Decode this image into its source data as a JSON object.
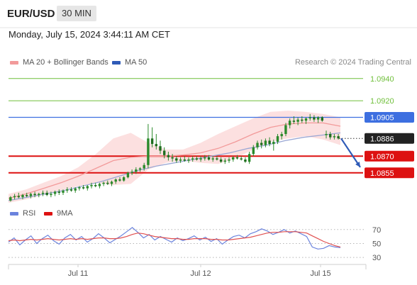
{
  "header": {
    "pair": "EUR/USD",
    "timeframe": "30 MIN",
    "datetime": "Monday, July 15, 2024 3:44:11 AM CET"
  },
  "legend": {
    "ma20": "MA 20 + Bollinger Bands",
    "ma50": "MA 50",
    "credit": "Research © 2024 Trading Central"
  },
  "indicator_legend": {
    "rsi": "RSI",
    "ma9": "9MA"
  },
  "colors": {
    "candle": "#2b8a2b",
    "ma20": "#f29a9a",
    "band_fill": "#fbdada",
    "ma50": "#9aa7d4",
    "support": "#dd1111",
    "resistance": "#6fbf3a",
    "pivot": "#3d6fe0",
    "current_label": "#222222",
    "rsi": "#6b83dd",
    "rsi_ma": "#e05050"
  },
  "chart_data": [
    {
      "type": "candlestick",
      "title": "EUR/USD",
      "x_ticks": [
        "Jul 11",
        "Jul 12",
        "Jul 15"
      ],
      "ylim": [
        1.0828,
        1.0952
      ],
      "candles_ohlc": [
        [
          1.083,
          1.0834,
          1.0829,
          1.0833
        ],
        [
          1.0833,
          1.0836,
          1.0831,
          1.0834
        ],
        [
          1.0834,
          1.0837,
          1.0832,
          1.0833
        ],
        [
          1.0833,
          1.0836,
          1.0831,
          1.0835
        ],
        [
          1.0835,
          1.0837,
          1.0833,
          1.0834
        ],
        [
          1.0834,
          1.0837,
          1.0832,
          1.0836
        ],
        [
          1.0836,
          1.0838,
          1.0833,
          1.0835
        ],
        [
          1.0835,
          1.0837,
          1.0833,
          1.0836
        ],
        [
          1.0836,
          1.0839,
          1.0834,
          1.0837
        ],
        [
          1.0837,
          1.0839,
          1.0834,
          1.0835
        ],
        [
          1.0835,
          1.0838,
          1.0833,
          1.0836
        ],
        [
          1.0836,
          1.0839,
          1.0834,
          1.0838
        ],
        [
          1.0838,
          1.084,
          1.0835,
          1.0837
        ],
        [
          1.0837,
          1.084,
          1.0835,
          1.0839
        ],
        [
          1.0839,
          1.0842,
          1.0837,
          1.084
        ],
        [
          1.084,
          1.0842,
          1.0838,
          1.0839
        ],
        [
          1.0839,
          1.0842,
          1.0837,
          1.0841
        ],
        [
          1.0841,
          1.0843,
          1.0839,
          1.0842
        ],
        [
          1.0842,
          1.0844,
          1.084,
          1.0841
        ],
        [
          1.0841,
          1.0844,
          1.0839,
          1.0843
        ],
        [
          1.0843,
          1.0846,
          1.0841,
          1.0844
        ],
        [
          1.0844,
          1.0846,
          1.0842,
          1.0843
        ],
        [
          1.0843,
          1.0846,
          1.0841,
          1.0845
        ],
        [
          1.0845,
          1.0847,
          1.0843,
          1.0846
        ],
        [
          1.0846,
          1.0848,
          1.0844,
          1.0845
        ],
        [
          1.0845,
          1.0848,
          1.0843,
          1.0847
        ],
        [
          1.0847,
          1.085,
          1.0845,
          1.0849
        ],
        [
          1.0849,
          1.0851,
          1.0847,
          1.0848
        ],
        [
          1.0848,
          1.0852,
          1.0847,
          1.0851
        ],
        [
          1.0851,
          1.0856,
          1.085,
          1.0855
        ],
        [
          1.0855,
          1.0858,
          1.0853,
          1.0856
        ],
        [
          1.0856,
          1.086,
          1.0854,
          1.0858
        ],
        [
          1.0858,
          1.086,
          1.0856,
          1.0859
        ],
        [
          1.0859,
          1.0864,
          1.0857,
          1.0862
        ],
        [
          1.0862,
          1.0899,
          1.0859,
          1.0886
        ],
        [
          1.0886,
          1.0896,
          1.0878,
          1.0881
        ],
        [
          1.0881,
          1.089,
          1.0876,
          1.0879
        ],
        [
          1.0879,
          1.0884,
          1.0872,
          1.0875
        ],
        [
          1.0875,
          1.0878,
          1.0868,
          1.0871
        ],
        [
          1.0871,
          1.0874,
          1.0866,
          1.0869
        ],
        [
          1.0869,
          1.0872,
          1.0865,
          1.0868
        ],
        [
          1.0868,
          1.087,
          1.0864,
          1.0866
        ],
        [
          1.0866,
          1.0869,
          1.0864,
          1.0867
        ],
        [
          1.0867,
          1.087,
          1.0865,
          1.0866
        ],
        [
          1.0866,
          1.0869,
          1.0864,
          1.0867
        ],
        [
          1.0867,
          1.087,
          1.0865,
          1.0868
        ],
        [
          1.0868,
          1.087,
          1.0866,
          1.0867
        ],
        [
          1.0867,
          1.087,
          1.0865,
          1.0868
        ],
        [
          1.0868,
          1.0871,
          1.0866,
          1.0869
        ],
        [
          1.0869,
          1.0871,
          1.0866,
          1.0867
        ],
        [
          1.0867,
          1.087,
          1.0865,
          1.0868
        ],
        [
          1.0868,
          1.087,
          1.0866,
          1.0867
        ],
        [
          1.0867,
          1.0869,
          1.0864,
          1.0865
        ],
        [
          1.0865,
          1.0868,
          1.0863,
          1.0866
        ],
        [
          1.0866,
          1.0869,
          1.0864,
          1.0867
        ],
        [
          1.0867,
          1.087,
          1.0865,
          1.0869
        ],
        [
          1.0869,
          1.0871,
          1.0867,
          1.0868
        ],
        [
          1.0868,
          1.087,
          1.0866,
          1.0867
        ],
        [
          1.0867,
          1.0869,
          1.0864,
          1.0865
        ],
        [
          1.0865,
          1.0874,
          1.0863,
          1.0872
        ],
        [
          1.0872,
          1.088,
          1.087,
          1.0878
        ],
        [
          1.0878,
          1.0884,
          1.0876,
          1.0882
        ],
        [
          1.0882,
          1.0885,
          1.0877,
          1.088
        ],
        [
          1.088,
          1.0886,
          1.0878,
          1.0884
        ],
        [
          1.0884,
          1.0887,
          1.0879,
          1.0881
        ],
        [
          1.0881,
          1.0885,
          1.0875,
          1.0883
        ],
        [
          1.0883,
          1.089,
          1.0881,
          1.0888
        ],
        [
          1.0888,
          1.0892,
          1.0885,
          1.089
        ],
        [
          1.089,
          1.09,
          1.0888,
          1.0898
        ],
        [
          1.0898,
          1.0904,
          1.0895,
          1.0902
        ],
        [
          1.0902,
          1.0906,
          1.0899,
          1.0901
        ],
        [
          1.0901,
          1.0905,
          1.0898,
          1.0903
        ],
        [
          1.0903,
          1.0906,
          1.09,
          1.0902
        ],
        [
          1.0902,
          1.0905,
          1.0899,
          1.0904
        ],
        [
          1.0904,
          1.0908,
          1.0902,
          1.0905
        ],
        [
          1.0905,
          1.0907,
          1.0901,
          1.0903
        ],
        [
          1.0903,
          1.0906,
          1.09,
          1.0905
        ],
        [
          1.0905,
          1.0906,
          1.0901,
          1.0902
        ],
        [
          1.0889,
          1.0893,
          1.0886,
          1.089
        ],
        [
          1.089,
          1.0892,
          1.0885,
          1.0887
        ],
        [
          1.0887,
          1.089,
          1.0885,
          1.0888
        ],
        [
          1.0888,
          1.089,
          1.0885,
          1.0886
        ]
      ],
      "ma20": [
        1.0832,
        1.0836,
        1.0841,
        1.0846,
        1.0852,
        1.0859,
        1.0866,
        1.0869,
        1.087,
        1.087,
        1.0871,
        1.0873,
        1.0877,
        1.0883,
        1.089,
        1.0896,
        1.0899,
        1.09,
        1.09,
        1.0897
      ],
      "bollinger_upper": [
        1.0836,
        1.084,
        1.0846,
        1.0852,
        1.086,
        1.0872,
        1.0886,
        1.0891,
        1.0882,
        1.0876,
        1.0876,
        1.0882,
        1.089,
        1.0897,
        1.0904,
        1.091,
        1.0911,
        1.091,
        1.0908,
        1.0905
      ],
      "bollinger_lower": [
        1.0828,
        1.0831,
        1.0835,
        1.0839,
        1.0843,
        1.0846,
        1.0844,
        1.0845,
        1.0858,
        1.0864,
        1.0866,
        1.0864,
        1.0863,
        1.0868,
        1.0876,
        1.0883,
        1.0886,
        1.0888,
        1.0885,
        1.088
      ],
      "ma50": [
        1.083,
        1.0833,
        1.0836,
        1.0839,
        1.0843,
        1.0847,
        1.0852,
        1.0857,
        1.0861,
        1.0864,
        1.0867,
        1.087,
        1.0873,
        1.0877,
        1.088,
        1.0884,
        1.0887,
        1.0889,
        1.0891
      ],
      "levels": [
        {
          "value": 1.094,
          "label": "1.0940",
          "kind": "resistance"
        },
        {
          "value": 1.092,
          "label": "1.0920",
          "kind": "resistance"
        },
        {
          "value": 1.0905,
          "label": "1.0905",
          "kind": "pivot"
        },
        {
          "value": 1.0886,
          "label": "1.0886",
          "kind": "current"
        },
        {
          "value": 1.087,
          "label": "1.0870",
          "kind": "support"
        },
        {
          "value": 1.0855,
          "label": "1.0855",
          "kind": "support"
        }
      ],
      "projection": {
        "from": 1.0886,
        "to": 1.086,
        "direction": "down"
      }
    },
    {
      "type": "line",
      "title": "RSI",
      "ylim": [
        25,
        80
      ],
      "y_ticks": [
        70,
        50,
        30
      ],
      "series": [
        {
          "name": "RSI",
          "values": [
            52,
            58,
            48,
            55,
            61,
            50,
            57,
            62,
            54,
            49,
            58,
            63,
            55,
            60,
            52,
            57,
            64,
            58,
            51,
            56,
            61,
            67,
            73,
            66,
            58,
            63,
            55,
            60,
            56,
            52,
            58,
            54,
            57,
            61,
            55,
            59,
            53,
            57,
            49,
            55,
            60,
            62,
            58,
            64,
            67,
            71,
            68,
            63,
            66,
            70,
            65,
            68,
            64,
            60,
            45,
            42,
            43,
            47,
            45,
            44
          ]
        },
        {
          "name": "9MA",
          "values": [
            54,
            55,
            54,
            55,
            56,
            55,
            56,
            57,
            56,
            55,
            56,
            57,
            56,
            57,
            56,
            57,
            58,
            58,
            57,
            57,
            58,
            60,
            63,
            65,
            64,
            62,
            60,
            59,
            58,
            57,
            57,
            56,
            56,
            57,
            57,
            57,
            56,
            56,
            55,
            55,
            56,
            57,
            58,
            59,
            61,
            63,
            65,
            66,
            66,
            67,
            67,
            67,
            66,
            65,
            61,
            57,
            53,
            50,
            47,
            45
          ]
        }
      ]
    }
  ]
}
